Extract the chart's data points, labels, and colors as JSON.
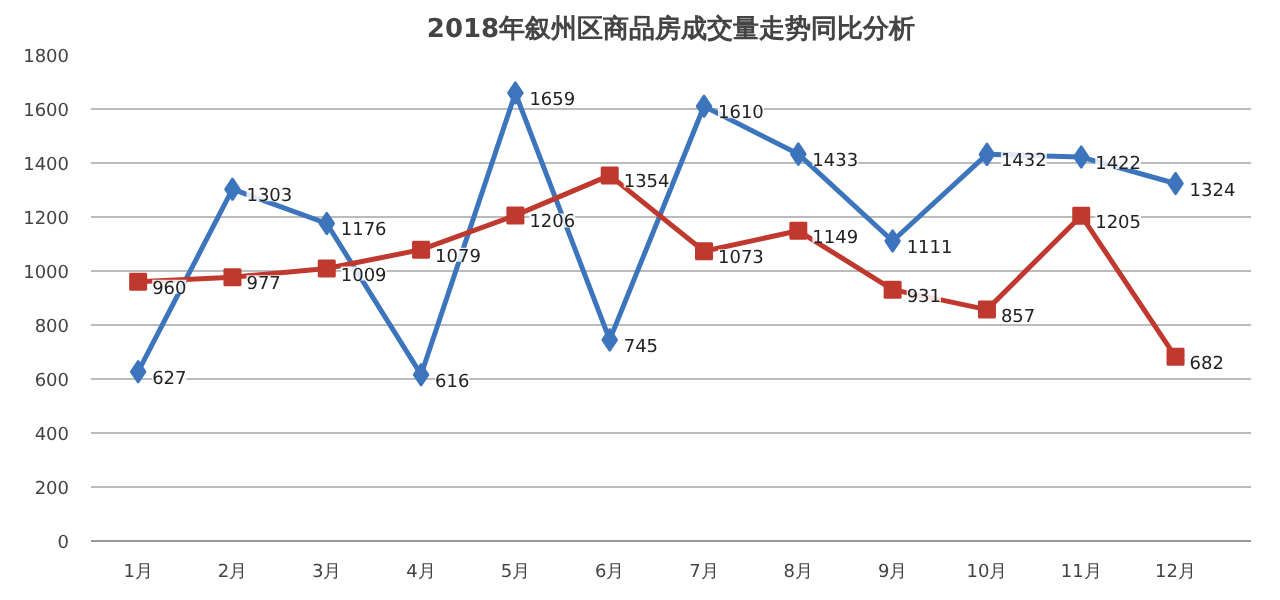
{
  "chart_data": {
    "type": "line",
    "title": "2018年叙州区商品房成交量走势同比分析",
    "categories": [
      "1月",
      "2月",
      "3月",
      "4月",
      "5月",
      "6月",
      "7月",
      "8月",
      "9月",
      "10月",
      "11月",
      "12月"
    ],
    "series": [
      {
        "color": "#3d75bd",
        "marker": "diamond",
        "values": [
          627,
          1303,
          1176,
          616,
          1659,
          745,
          1610,
          1433,
          1111,
          1432,
          1422,
          1324
        ]
      },
      {
        "color": "#c0392f",
        "marker": "square",
        "values": [
          960,
          977,
          1009,
          1079,
          1206,
          1354,
          1073,
          1149,
          931,
          857,
          1205,
          682
        ]
      }
    ],
    "ylim": [
      0,
      1800
    ],
    "yticks": [
      0,
      200,
      400,
      600,
      800,
      1000,
      1200,
      1400,
      1600,
      1800
    ],
    "grid": "y",
    "data_labels": true,
    "line_style": "solid"
  }
}
